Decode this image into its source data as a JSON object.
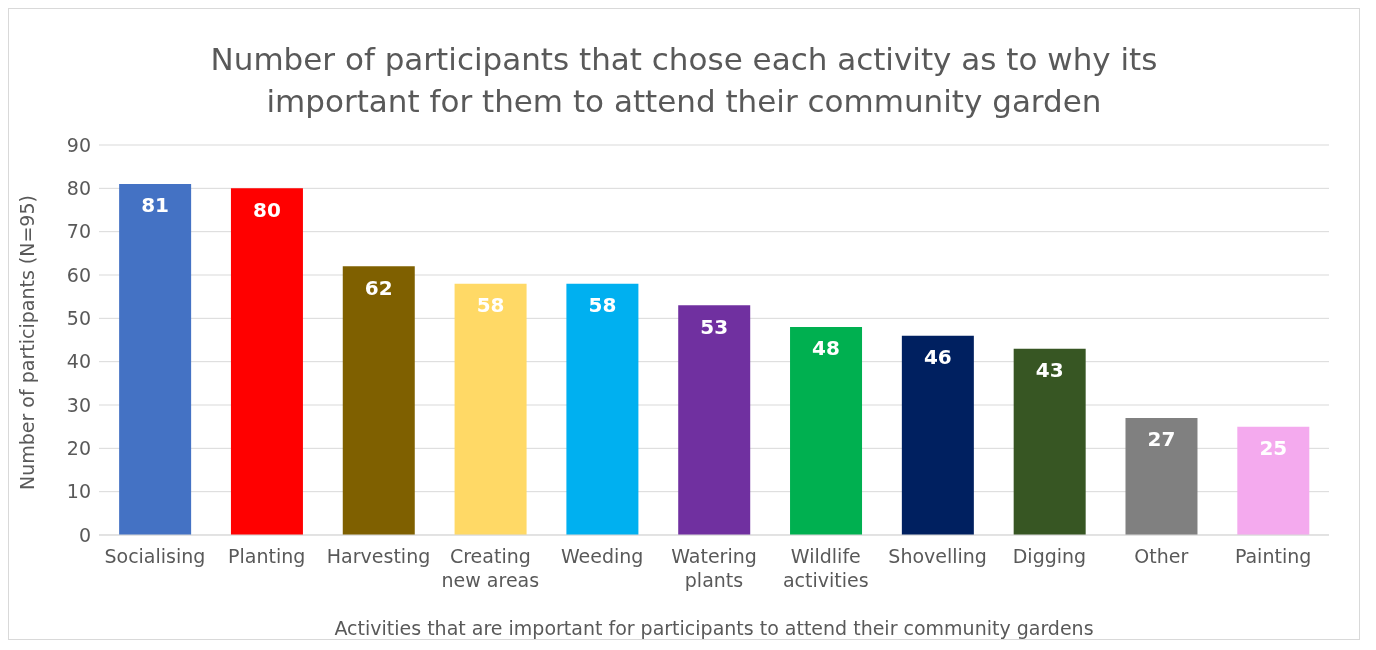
{
  "chart_data": {
    "type": "bar",
    "title": "Number of participants that chose each activity as to why its important for them to attend their community garden",
    "xlabel": "Activities that are important for participants to attend their community gardens",
    "ylabel": "Number of participants (N=95)",
    "categories": [
      "Socialising",
      "Planting",
      "Harvesting",
      "Creating new areas",
      "Weeding",
      "Watering plants",
      "Wildlife activities",
      "Shovelling",
      "Digging",
      "Other",
      "Painting"
    ],
    "values": [
      81,
      80,
      62,
      58,
      58,
      53,
      48,
      46,
      43,
      27,
      25
    ],
    "colors": [
      "#4472c4",
      "#ff0000",
      "#7f6000",
      "#ffd966",
      "#00b0f0",
      "#7030a0",
      "#00b050",
      "#002060",
      "#375623",
      "#808080",
      "#f4aaee"
    ],
    "ylim": [
      0,
      90
    ],
    "yticks": [
      0,
      10,
      20,
      30,
      40,
      50,
      60,
      70,
      80,
      90
    ],
    "grid": "y",
    "data_labels": true
  }
}
